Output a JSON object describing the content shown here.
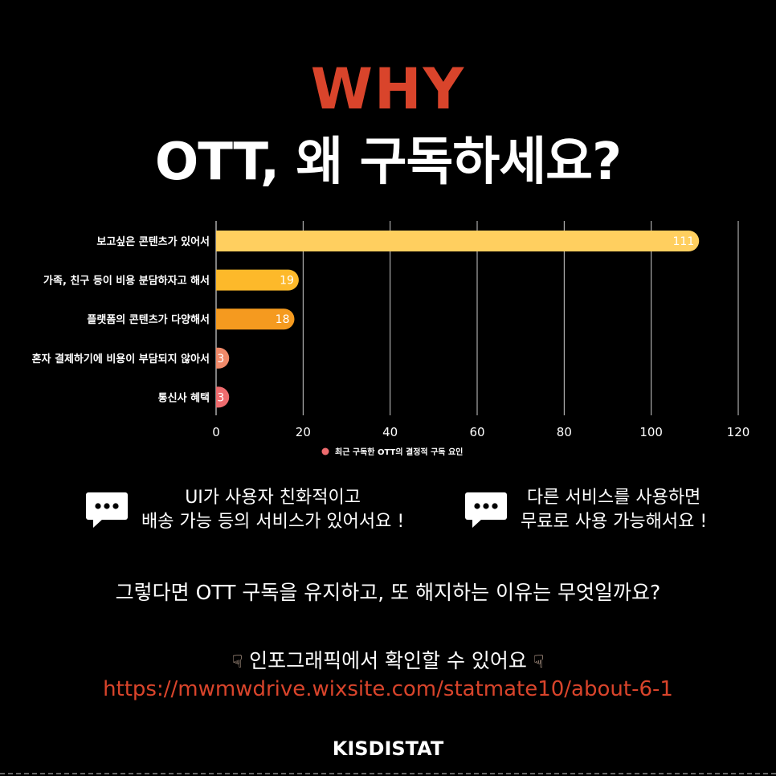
{
  "header": {
    "why": "WHY",
    "main": "OTT, 왜 구독하세요?"
  },
  "colors": {
    "accent": "#d9442b",
    "bar_1": "#ffcf5f",
    "bar_2": "#fdb92a",
    "bar_3": "#f59a1f",
    "bar_4": "#f08a6a",
    "bar_5": "#ee6b6e",
    "grid": "#ffffff",
    "url": "#d9442b"
  },
  "chart_data": {
    "type": "bar",
    "orientation": "horizontal",
    "categories": [
      "보고싶은 콘텐츠가 있어서",
      "가족, 친구 등이 비용 분담하자고 해서",
      "플랫폼의 콘텐츠가 다양해서",
      "혼자 결제하기에 비용이 부담되지 않아서",
      "통신사 혜택"
    ],
    "series": [
      {
        "name": "최근 구독한 OTT의 결정적 구독 요인",
        "values": [
          111,
          19,
          18,
          3,
          3
        ]
      }
    ],
    "xlim": [
      0,
      120
    ],
    "xticks": [
      "0",
      "20",
      "40",
      "60",
      "80",
      "100",
      "120"
    ],
    "grid": true,
    "legend": "bottom-center"
  },
  "comments": [
    {
      "line1": "UI가 사용자 친화적이고",
      "line2": "배송 가능 등의 서비스가 있어서요 !"
    },
    {
      "line1": "다른 서비스를 사용하면",
      "line2": "무료로 사용 가능해서요 !"
    }
  ],
  "icons": {
    "comment": "speech-bubble-icon",
    "hand": "pointing-down-hand-icon"
  },
  "footer": {
    "question": "그렇다면 OTT 구독을 유지하고, 또 해지하는 이유는 무엇일까요?",
    "info_text": "인포그래픽에서 확인할 수 있어요",
    "url": "https://mwmwdrive.wixsite.com/statmate10/about-6-1",
    "logo": "KISDISTAT"
  }
}
